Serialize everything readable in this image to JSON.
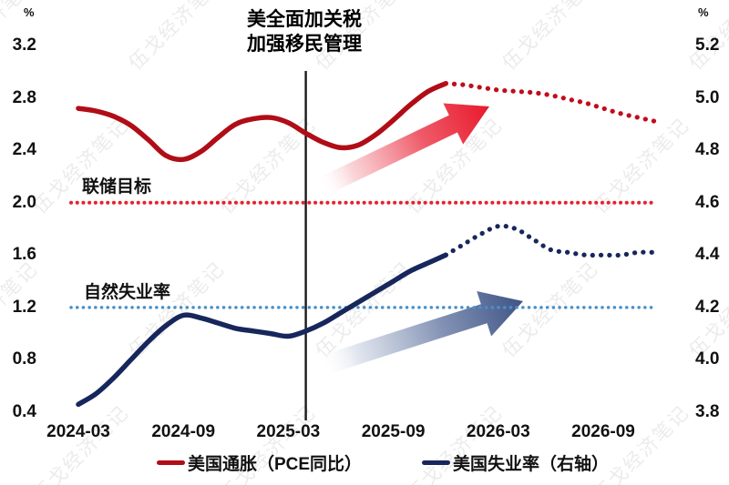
{
  "title": {
    "line1": "美全面加关税",
    "line2": "加强移民管理"
  },
  "left_axis": {
    "unit": "%",
    "ticks": [
      "3.2",
      "2.8",
      "2.4",
      "2.0",
      "1.6",
      "1.2",
      "0.8",
      "0.4"
    ],
    "range": [
      0.4,
      3.2
    ]
  },
  "right_axis": {
    "unit": "%",
    "ticks": [
      "5.2",
      "5.0",
      "4.8",
      "4.6",
      "4.4",
      "4.2",
      "4.0",
      "3.8"
    ],
    "range": [
      3.8,
      5.2
    ]
  },
  "x_axis": {
    "tick_labels": [
      "2024-03",
      "2024-09",
      "2025-03",
      "2025-09",
      "2026-03",
      "2026-09"
    ],
    "tick_month_indices": [
      0,
      6,
      12,
      18,
      24,
      30
    ]
  },
  "annotations": {
    "fed_target_label": "联储目标",
    "natural_rate_label": "自然失业率",
    "event_month": "2025-04",
    "red_arrow": "inflation-rising-arrow",
    "blue_arrow": "unemployment-rising-arrow"
  },
  "legend": {
    "items": [
      {
        "label": "美国通胀（PCE同比）",
        "series": "inflation"
      },
      {
        "label": "美国失业率（右轴）",
        "series": "unemployment"
      }
    ]
  },
  "watermark": {
    "text": "伍戈经济笔记"
  },
  "colors": {
    "inflation_line": "#b00d17",
    "inflation_forecast_dots": "#c10d1b",
    "unemployment_line": "#17275c",
    "unemployment_forecast_dots": "#17275c",
    "fed_target_dots": "#e52230",
    "natural_rate_dots": "#4a90c8",
    "event_line": "#1a1a1a",
    "red_arrow_head": "#e8192c",
    "red_arrow_tail": "#fdeef0",
    "blue_arrow_head": "#3f5486",
    "blue_arrow_tail": "#eef1f7"
  },
  "chart_data": {
    "type": "line",
    "title": "美全面加关税 加强移民管理",
    "months": [
      "2024-03",
      "2024-04",
      "2024-05",
      "2024-06",
      "2024-07",
      "2024-08",
      "2024-09",
      "2024-10",
      "2024-11",
      "2024-12",
      "2025-01",
      "2025-02",
      "2025-03",
      "2025-04",
      "2025-05",
      "2025-06",
      "2025-07",
      "2025-08",
      "2025-09",
      "2025-10",
      "2025-11",
      "2025-12",
      "2026-01",
      "2026-02",
      "2026-03",
      "2026-04",
      "2026-05",
      "2026-06",
      "2026-07",
      "2026-08",
      "2026-09",
      "2026-10",
      "2026-11",
      "2026-12"
    ],
    "series": [
      {
        "name": "美国通胀（PCE同比）",
        "axis": "left",
        "style": "solid",
        "start_index": 0,
        "values": [
          2.72,
          2.7,
          2.66,
          2.59,
          2.48,
          2.36,
          2.33,
          2.39,
          2.5,
          2.6,
          2.64,
          2.65,
          2.61,
          2.53,
          2.46,
          2.42,
          2.44,
          2.52,
          2.63,
          2.75,
          2.85,
          2.91
        ]
      },
      {
        "name": "美国通胀（PCE同比）预测",
        "axis": "left",
        "style": "dotted",
        "start_index": 21,
        "values": [
          2.91,
          2.9,
          2.88,
          2.86,
          2.85,
          2.84,
          2.82,
          2.79,
          2.76,
          2.72,
          2.68,
          2.65,
          2.62
        ]
      },
      {
        "name": "美国失业率（右轴）",
        "axis": "right",
        "style": "solid",
        "start_index": 0,
        "values": [
          3.83,
          3.87,
          3.93,
          4.0,
          4.07,
          4.13,
          4.17,
          4.16,
          4.14,
          4.12,
          4.11,
          4.1,
          4.09,
          4.11,
          4.14,
          4.18,
          4.22,
          4.26,
          4.3,
          4.34,
          4.37,
          4.4
        ]
      },
      {
        "name": "美国失业率（右轴）预测",
        "axis": "right",
        "style": "dotted",
        "start_index": 21,
        "values": [
          4.4,
          4.44,
          4.48,
          4.51,
          4.5,
          4.46,
          4.42,
          4.41,
          4.4,
          4.4,
          4.4,
          4.41,
          4.41
        ]
      }
    ],
    "reference_lines": [
      {
        "label": "联储目标",
        "axis": "left",
        "value": 2.0
      },
      {
        "label": "自然失业率",
        "axis": "right",
        "value": 4.2
      }
    ],
    "event_line_month_index": 13,
    "left_ylim": [
      0.4,
      3.2
    ],
    "right_ylim": [
      3.8,
      5.2
    ],
    "grid": false,
    "legend_position": "bottom"
  }
}
